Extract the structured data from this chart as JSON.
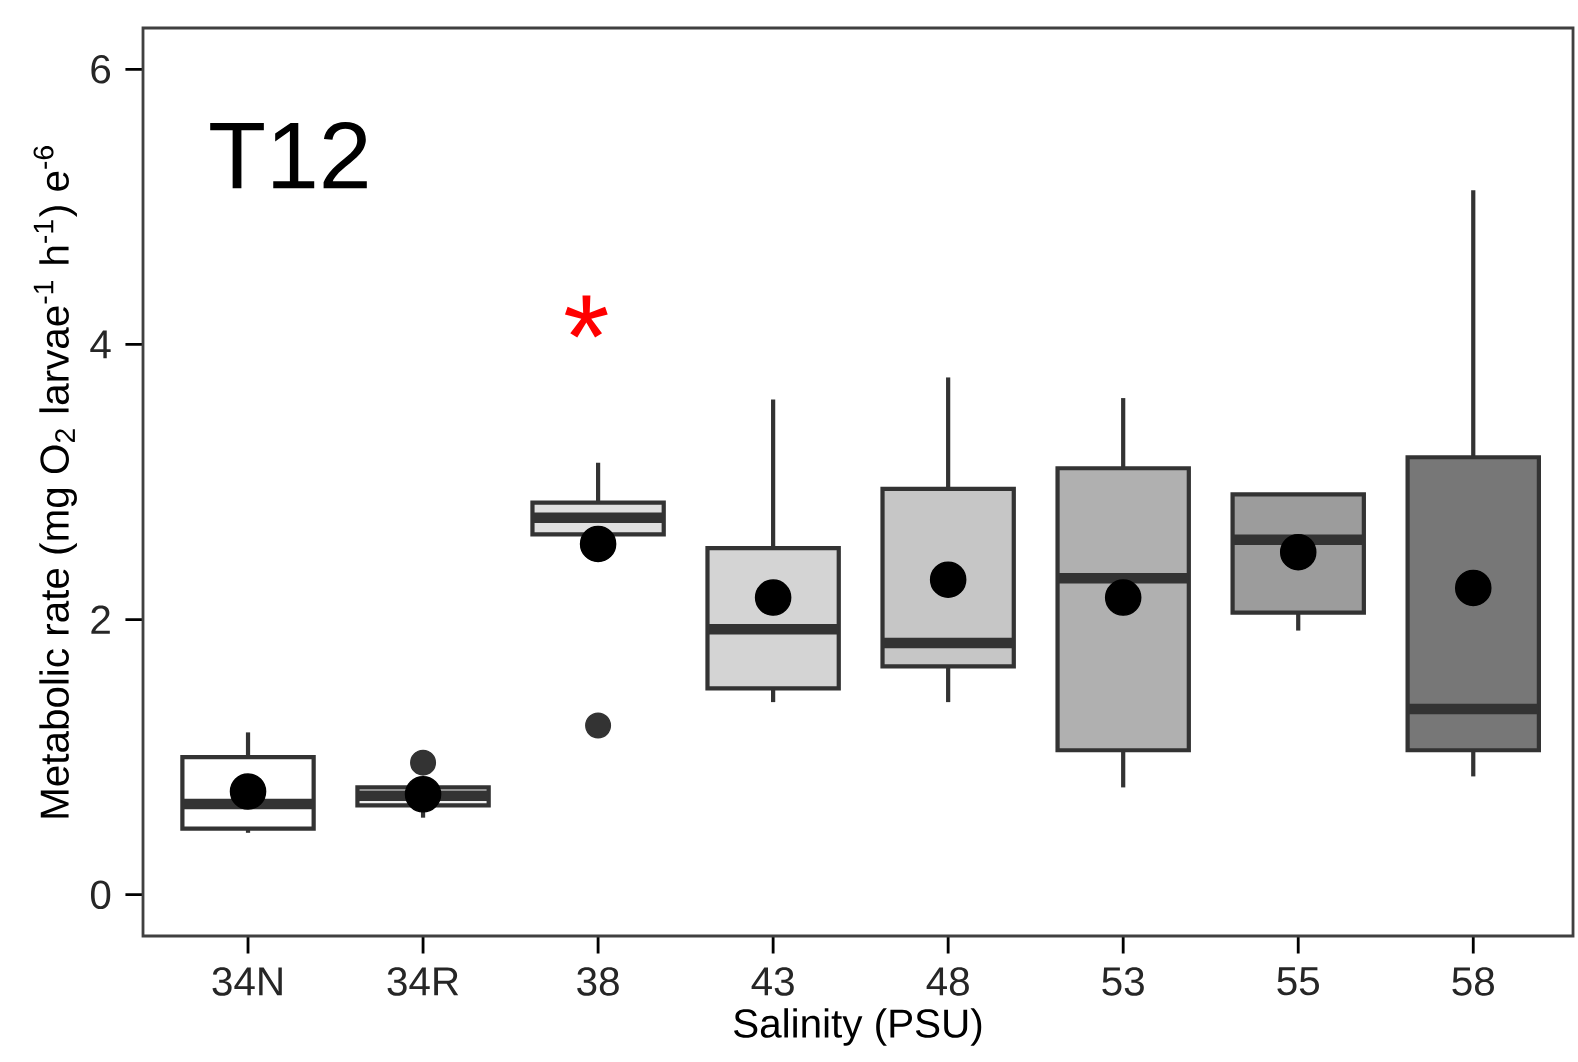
{
  "chart_data": {
    "type": "box",
    "xlabel": "Salinity (PSU)",
    "ylabel": "Metabolic rate (mg O$_{2}$ larvae$^{-1}$ h$^{-1}$) e$^{-6}$",
    "categories": [
      "34N",
      "34R",
      "38",
      "43",
      "48",
      "53",
      "55",
      "58"
    ],
    "colors": [
      "#ffffff",
      "#eeeeee",
      "#e0e0e0",
      "#d4d4d4",
      "#c6c6c6",
      "#b0b0b0",
      "#9c9c9c",
      "#777777"
    ],
    "boxes": [
      {
        "low": 0.45,
        "q1": 0.48,
        "median": 0.66,
        "q3": 1.0,
        "high": 1.18,
        "mean": 0.75
      },
      {
        "low": 0.56,
        "q1": 0.65,
        "median": 0.72,
        "q3": 0.78,
        "high": 0.78,
        "mean": 0.73,
        "outliers": [
          0.96
        ]
      },
      {
        "low": 2.62,
        "q1": 2.62,
        "median": 2.74,
        "q3": 2.85,
        "high": 3.14,
        "mean": 2.55,
        "outliers": [
          1.23
        ]
      },
      {
        "low": 1.4,
        "q1": 1.5,
        "median": 1.93,
        "q3": 2.52,
        "high": 3.6,
        "mean": 2.16
      },
      {
        "low": 1.4,
        "q1": 1.66,
        "median": 1.83,
        "q3": 2.95,
        "high": 3.76,
        "mean": 2.29
      },
      {
        "low": 0.78,
        "q1": 1.05,
        "median": 2.3,
        "q3": 3.1,
        "high": 3.61,
        "mean": 2.16
      },
      {
        "low": 1.92,
        "q1": 2.05,
        "median": 2.58,
        "q3": 2.91,
        "high": 2.91,
        "mean": 2.49
      },
      {
        "low": 0.86,
        "q1": 1.05,
        "median": 1.35,
        "q3": 3.18,
        "high": 5.12,
        "mean": 2.23
      }
    ],
    "ylim": [
      -0.3,
      6.3
    ],
    "yticks": [
      0,
      2,
      4,
      6
    ],
    "grid": false,
    "annotations": [
      "T12",
      "*"
    ]
  }
}
